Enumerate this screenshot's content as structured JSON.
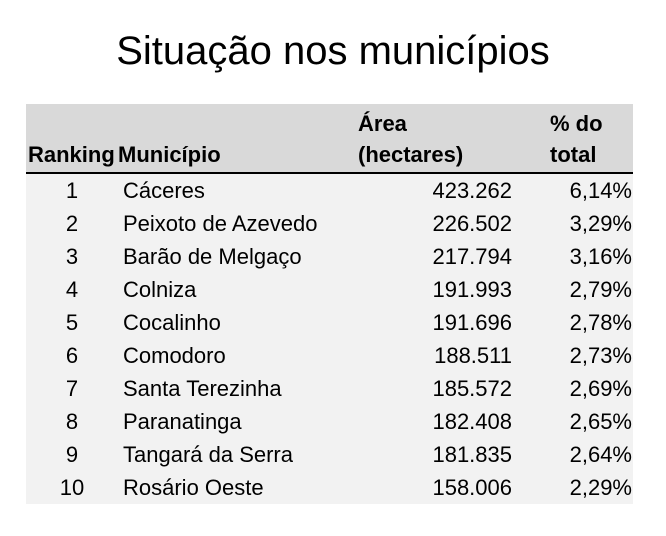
{
  "title": "Situação nos municípios",
  "table": {
    "headers": {
      "ranking": "Ranking",
      "municipio": "Município",
      "area_line1": "Área",
      "area_line2": "(hectares)",
      "pct_line1": "% do",
      "pct_line2": "total"
    },
    "rows": [
      {
        "rank": "1",
        "municipio": "Cáceres",
        "area": "423.262",
        "pct": "6,14%"
      },
      {
        "rank": "2",
        "municipio": "Peixoto de Azevedo",
        "area": "226.502",
        "pct": "3,29%"
      },
      {
        "rank": "3",
        "municipio": "Barão de Melgaço",
        "area": "217.794",
        "pct": "3,16%"
      },
      {
        "rank": "4",
        "municipio": "Colniza",
        "area": "191.993",
        "pct": "2,79%"
      },
      {
        "rank": "5",
        "municipio": "Cocalinho",
        "area": "191.696",
        "pct": "2,78%"
      },
      {
        "rank": "6",
        "municipio": "Comodoro",
        "area": "188.511",
        "pct": "2,73%"
      },
      {
        "rank": "7",
        "municipio": "Santa Terezinha",
        "area": "185.572",
        "pct": "2,69%"
      },
      {
        "rank": "8",
        "municipio": "Paranatinga",
        "area": "182.408",
        "pct": "2,65%"
      },
      {
        "rank": "9",
        "municipio": "Tangará da Serra",
        "area": "181.835",
        "pct": "2,64%"
      },
      {
        "rank": "10",
        "municipio": "Rosário Oeste",
        "area": "158.006",
        "pct": "2,29%"
      }
    ]
  },
  "colors": {
    "header_background": "#d9d9d9",
    "row_background": "#f2f2f2",
    "text": "#000000",
    "header_rule": "#000000"
  }
}
